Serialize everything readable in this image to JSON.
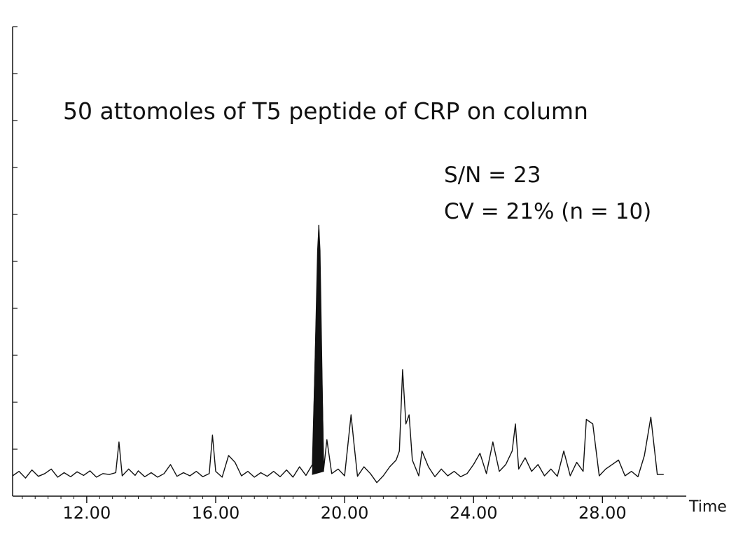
{
  "chart_data": {
    "type": "line",
    "title": "50 attomoles of T5 peptide of CRP on column",
    "xlabel": "Time",
    "ylabel": "",
    "xlim": [
      9.7,
      30.6
    ],
    "ylim": [
      -4,
      100
    ],
    "x_ticks": [
      {
        "value": 12,
        "label": "12.00"
      },
      {
        "value": 16,
        "label": "16.00"
      },
      {
        "value": 20,
        "label": "20.00"
      },
      {
        "value": 24,
        "label": "24.00"
      },
      {
        "value": 28,
        "label": "28.00"
      }
    ],
    "annotations": [
      "S/N = 23",
      "CV = 21% (n = 10)"
    ],
    "highlighted_peak": {
      "x_start": 19.0,
      "apex": 19.2,
      "x_end": 19.35,
      "height": 56
    },
    "series": [
      {
        "x": [
          9.7,
          9.9,
          10.1,
          10.3,
          10.5,
          10.7,
          10.9,
          11.1,
          11.3,
          11.5,
          11.7,
          11.9,
          12.1,
          12.3,
          12.5,
          12.7,
          12.9,
          13.0,
          13.1,
          13.3,
          13.5,
          13.6,
          13.8,
          14.0,
          14.2,
          14.4,
          14.6,
          14.8,
          15.0,
          15.2,
          15.4,
          15.6,
          15.8,
          15.9,
          16.0,
          16.2,
          16.4,
          16.6,
          16.8,
          17.0,
          17.2,
          17.4,
          17.6,
          17.8,
          18.0,
          18.2,
          18.4,
          18.6,
          18.8,
          19.0,
          19.2,
          19.35,
          19.45,
          19.6,
          19.8,
          20.0,
          20.2,
          20.3,
          20.4,
          20.6,
          20.8,
          21.0,
          21.2,
          21.4,
          21.6,
          21.7,
          21.8,
          21.9,
          22.0,
          22.1,
          22.3,
          22.4,
          22.6,
          22.8,
          23.0,
          23.2,
          23.4,
          23.6,
          23.8,
          24.0,
          24.2,
          24.4,
          24.6,
          24.8,
          25.0,
          25.2,
          25.3,
          25.4,
          25.6,
          25.8,
          26.0,
          26.2,
          26.4,
          26.6,
          26.8,
          27.0,
          27.2,
          27.4,
          27.5,
          27.7,
          27.9,
          28.1,
          28.3,
          28.5,
          28.7,
          28.9,
          29.1,
          29.3,
          29.5,
          29.7,
          29.9
        ],
        "y": [
          0.5,
          1.5,
          0.0,
          1.8,
          0.4,
          1.0,
          2.0,
          0.2,
          1.2,
          0.3,
          1.4,
          0.6,
          1.6,
          0.2,
          1.0,
          0.8,
          1.2,
          8.0,
          0.5,
          2.0,
          0.6,
          1.6,
          0.3,
          1.2,
          0.2,
          1.0,
          3.0,
          0.4,
          1.2,
          0.5,
          1.5,
          0.3,
          1.0,
          9.5,
          1.5,
          0.2,
          5.0,
          3.5,
          0.5,
          1.5,
          0.2,
          1.2,
          0.4,
          1.5,
          0.3,
          1.8,
          0.2,
          2.5,
          0.6,
          3.0,
          56.0,
          2.0,
          8.5,
          1.0,
          2.0,
          0.5,
          14.0,
          7.0,
          0.4,
          2.5,
          1.0,
          -1.0,
          0.5,
          2.5,
          4.0,
          6.0,
          24.0,
          12.0,
          14.0,
          4.0,
          0.5,
          6.0,
          2.5,
          0.3,
          2.0,
          0.5,
          1.5,
          0.3,
          1.0,
          3.0,
          5.5,
          1.0,
          8.0,
          1.5,
          3.0,
          6.0,
          12.0,
          2.0,
          4.5,
          1.5,
          3.0,
          0.5,
          2.0,
          0.4,
          6.0,
          0.5,
          3.5,
          1.5,
          13.0,
          12.0,
          0.5,
          2.0,
          3.0,
          4.0,
          0.5,
          1.5,
          0.3,
          5.0,
          13.5,
          0.8,
          0.8
        ]
      }
    ]
  }
}
